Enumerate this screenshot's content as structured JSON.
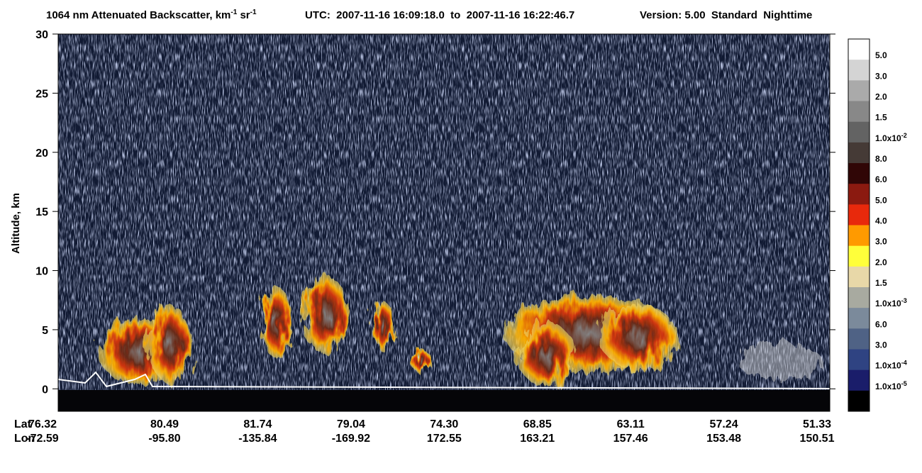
{
  "chart_data": {
    "type": "curtain",
    "title": {
      "parts": [
        "1064 nm Attenuated Backscatter, km",
        "-1",
        " sr",
        "-1"
      ],
      "utc": "UTC:  2007-11-16 16:09:18.0  to  2007-11-16 16:22:46.7",
      "version": "Version: 5.00  Standard  Nighttime"
    },
    "y_label": "Altitude, km",
    "ylim": [
      -1.9,
      30
    ],
    "yticks": [
      0,
      5,
      10,
      15,
      20,
      25,
      30
    ],
    "x_row_labels": [
      "Lat",
      "Lon"
    ],
    "lat": [
      "76.32",
      "80.49",
      "81.74",
      "79.04",
      "74.30",
      "68.85",
      "63.11",
      "57.24",
      "51.33"
    ],
    "lon": [
      "-72.59",
      "-95.80",
      "-135.84",
      "-169.92",
      "172.55",
      "163.21",
      "157.46",
      "153.48",
      "150.51"
    ],
    "colorbar": {
      "colors": [
        "#ffffff",
        "#d4d4d4",
        "#aaaaaa",
        "#888888",
        "#636363",
        "#453a36",
        "#300606",
        "#8b1a10",
        "#e8290c",
        "#ff9a00",
        "#ffff3a",
        "#e8d8a8",
        "#a8aaa0",
        "#7b8a9b",
        "#4f6285",
        "#2f4382",
        "#1a1d6a",
        "#000000"
      ],
      "labels": [
        {
          "text": "5.0"
        },
        {
          "text": "3.0"
        },
        {
          "text": "2.0"
        },
        {
          "text": "1.5"
        },
        {
          "text": "1.0x10",
          "exp": "-2"
        },
        {
          "text": "8.0"
        },
        {
          "text": "6.0"
        },
        {
          "text": "5.0"
        },
        {
          "text": "4.0"
        },
        {
          "text": "3.0"
        },
        {
          "text": "2.0"
        },
        {
          "text": "1.5"
        },
        {
          "text": "1.0x10",
          "exp": "-3"
        },
        {
          "text": "6.0"
        },
        {
          "text": "3.0"
        },
        {
          "text": "1.0x10",
          "exp": "-4"
        },
        {
          "text": "1.0x10",
          "exp": "-5"
        }
      ]
    }
  }
}
